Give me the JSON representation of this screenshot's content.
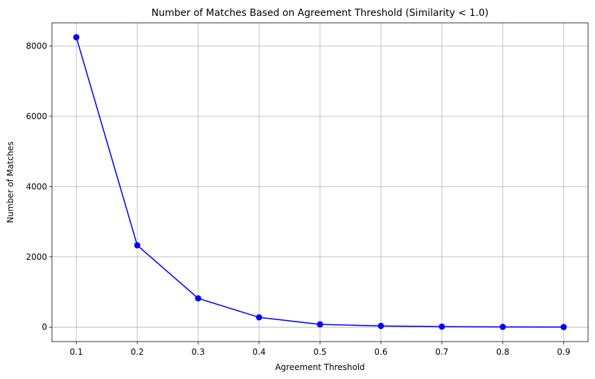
{
  "chart_data": {
    "type": "line",
    "title": "Number of Matches Based on Agreement Threshold (Similarity < 1.0)",
    "xlabel": "Agreement Threshold",
    "ylabel": "Number of Matches",
    "x": [
      0.1,
      0.2,
      0.3,
      0.4,
      0.5,
      0.6,
      0.7,
      0.8,
      0.9
    ],
    "series": [
      {
        "color": "#0000ff",
        "marker": "circle",
        "values": [
          8250,
          2330,
          820,
          280,
          80,
          35,
          15,
          8,
          3
        ]
      }
    ],
    "xlim": [
      0.06,
      0.94
    ],
    "ylim": [
      -410,
      8660
    ],
    "xticks": [
      0.1,
      0.2,
      0.3,
      0.4,
      0.5,
      0.6,
      0.7,
      0.8,
      0.9
    ],
    "xtick_labels": [
      "0.1",
      "0.2",
      "0.3",
      "0.4",
      "0.5",
      "0.6",
      "0.7",
      "0.8",
      "0.9"
    ],
    "yticks": [
      0,
      2000,
      4000,
      6000,
      8000
    ],
    "ytick_labels": [
      "0",
      "2000",
      "4000",
      "6000",
      "8000"
    ],
    "grid": true,
    "legend": false
  }
}
